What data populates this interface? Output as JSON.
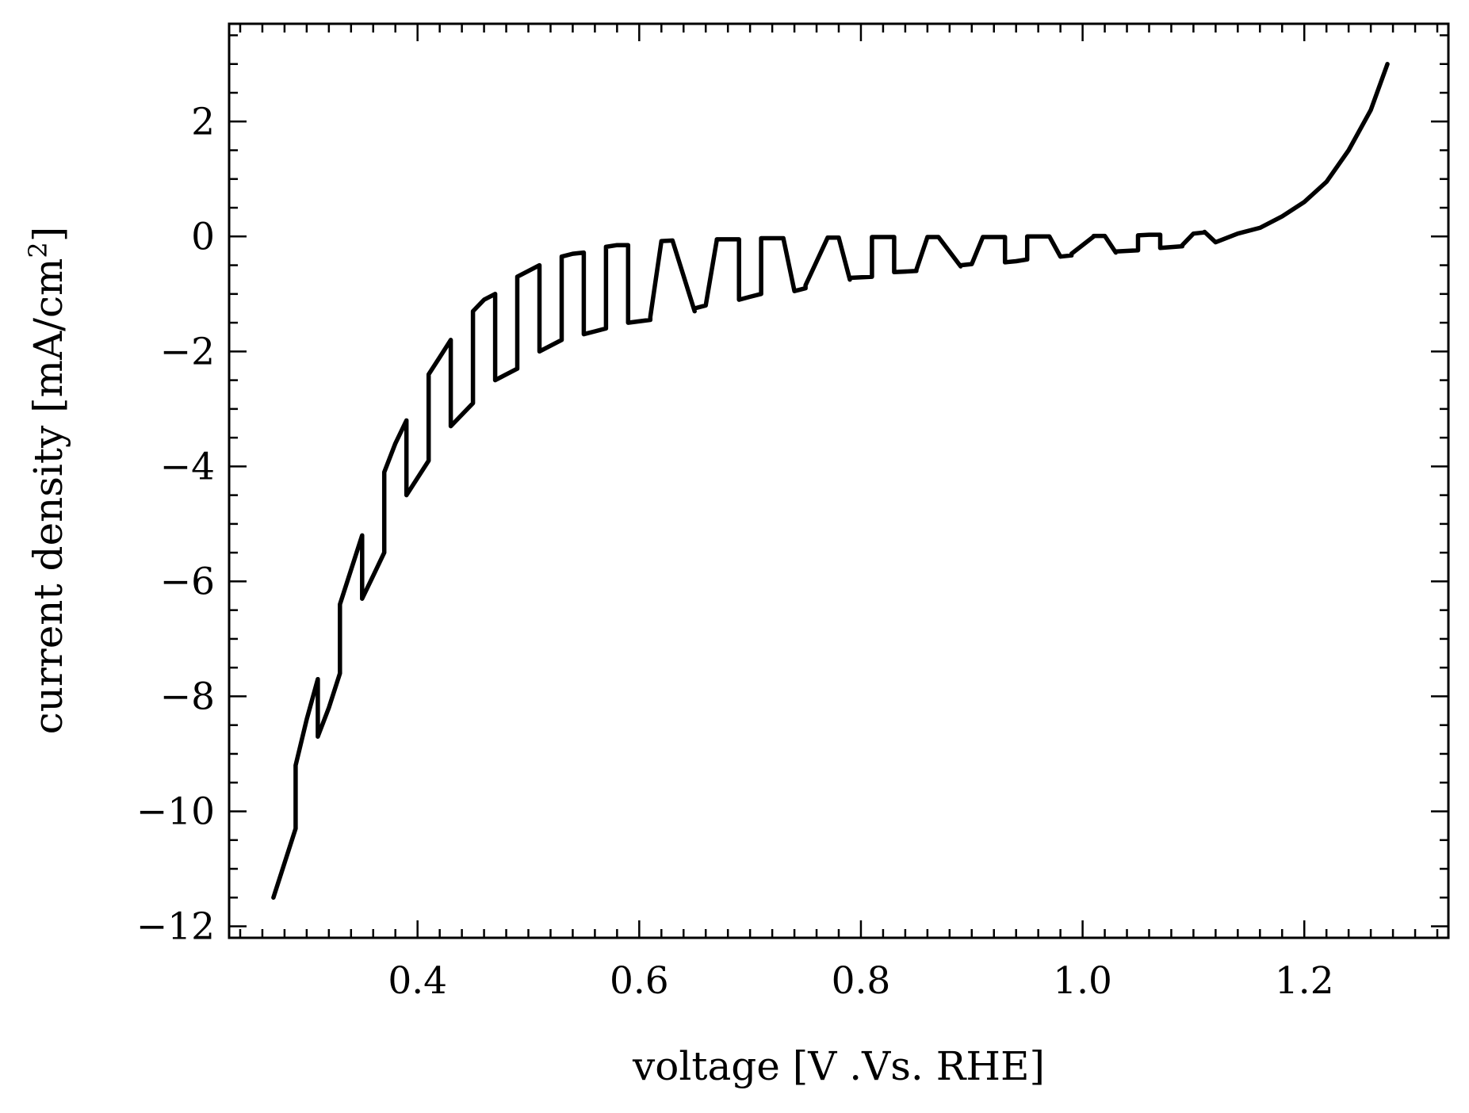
{
  "chart_data": {
    "type": "line",
    "title": "",
    "xlabel": "voltage [V .Vs. RHE]",
    "ylabel": "current density [mA/cm²]",
    "ylabel_main": "current density [mA/cm",
    "ylabel_sup": "2",
    "ylabel_close": "]",
    "xlim": [
      0.23,
      1.33
    ],
    "ylim": [
      -12.2,
      3.7
    ],
    "xticks": [
      0.4,
      0.6,
      0.8,
      1.0,
      1.2
    ],
    "xtick_labels": [
      "0.4",
      "0.6",
      "0.8",
      "1.0",
      "1.2"
    ],
    "yticks": [
      2,
      0,
      -2,
      -4,
      -6,
      -8,
      -10,
      -12
    ],
    "ytick_labels": [
      "2",
      "0",
      "−2",
      "−4",
      "−6",
      "−8",
      "−10",
      "−12"
    ],
    "x_minor_step": 0.02,
    "y_minor_step": 0.5,
    "tick_direction": "in",
    "ticks_all_sides": true,
    "grid": false,
    "legend": "none",
    "line_color": "#000000",
    "series": [
      {
        "x": [
          0.27,
          0.28,
          0.29,
          0.29,
          0.3,
          0.31,
          0.31,
          0.32,
          0.33,
          0.33,
          0.34,
          0.35,
          0.35,
          0.36,
          0.37,
          0.37,
          0.38,
          0.39,
          0.39,
          0.4,
          0.41,
          0.41,
          0.42,
          0.43,
          0.43,
          0.44,
          0.45,
          0.45,
          0.46,
          0.47,
          0.47,
          0.48,
          0.49,
          0.49,
          0.5,
          0.51,
          0.51,
          0.52,
          0.53,
          0.53,
          0.54,
          0.55,
          0.55,
          0.56,
          0.57,
          0.57,
          0.58,
          0.59,
          0.59,
          0.61,
          0.61,
          0.62,
          0.63,
          0.63,
          0.65,
          0.65,
          0.66,
          0.67,
          0.67,
          0.69,
          0.69,
          0.7,
          0.71,
          0.71,
          0.73,
          0.73,
          0.74,
          0.75,
          0.75,
          0.77,
          0.77,
          0.78,
          0.79,
          0.79,
          0.81,
          0.81,
          0.82,
          0.83,
          0.83,
          0.85,
          0.85,
          0.86,
          0.87,
          0.87,
          0.89,
          0.89,
          0.9,
          0.91,
          0.91,
          0.93,
          0.93,
          0.94,
          0.95,
          0.95,
          0.97,
          0.97,
          0.98,
          0.99,
          0.99,
          1.01,
          1.01,
          1.02,
          1.03,
          1.03,
          1.05,
          1.05,
          1.06,
          1.07,
          1.07,
          1.09,
          1.09,
          1.1,
          1.11,
          1.11,
          1.12,
          1.14,
          1.16,
          1.18,
          1.2,
          1.22,
          1.24,
          1.26,
          1.275
        ],
        "y": [
          -11.5,
          -10.9,
          -10.3,
          -9.2,
          -8.4,
          -7.7,
          -8.7,
          -8.2,
          -7.6,
          -6.4,
          -5.8,
          -5.2,
          -6.3,
          -5.9,
          -5.5,
          -4.1,
          -3.6,
          -3.2,
          -4.5,
          -4.2,
          -3.9,
          -2.4,
          -2.1,
          -1.8,
          -3.3,
          -3.1,
          -2.9,
          -1.3,
          -1.1,
          -1.0,
          -2.5,
          -2.4,
          -2.3,
          -0.7,
          -0.6,
          -0.5,
          -2.0,
          -1.9,
          -1.8,
          -0.35,
          -0.3,
          -0.28,
          -1.7,
          -1.65,
          -1.6,
          -0.18,
          -0.15,
          -0.15,
          -1.5,
          -1.45,
          -1.4,
          -0.08,
          -0.07,
          -0.07,
          -1.3,
          -1.25,
          -1.2,
          -0.06,
          -0.05,
          -0.05,
          -1.1,
          -1.05,
          -1.0,
          -0.03,
          -0.03,
          -0.03,
          -0.95,
          -0.9,
          -0.85,
          -0.02,
          -0.02,
          -0.02,
          -0.75,
          -0.72,
          -0.7,
          -0.01,
          -0.01,
          -0.01,
          -0.62,
          -0.6,
          -0.58,
          -0.01,
          -0.01,
          -0.01,
          -0.52,
          -0.5,
          -0.48,
          -0.01,
          -0.01,
          -0.01,
          -0.45,
          -0.43,
          -0.4,
          0.0,
          0.0,
          0.0,
          -0.35,
          -0.33,
          -0.3,
          0.0,
          0.01,
          0.01,
          -0.28,
          -0.26,
          -0.24,
          0.02,
          0.03,
          0.03,
          -0.2,
          -0.17,
          -0.15,
          0.05,
          0.07,
          0.08,
          -0.1,
          0.05,
          0.15,
          0.35,
          0.6,
          0.95,
          1.5,
          2.2,
          3.0
        ]
      }
    ]
  }
}
